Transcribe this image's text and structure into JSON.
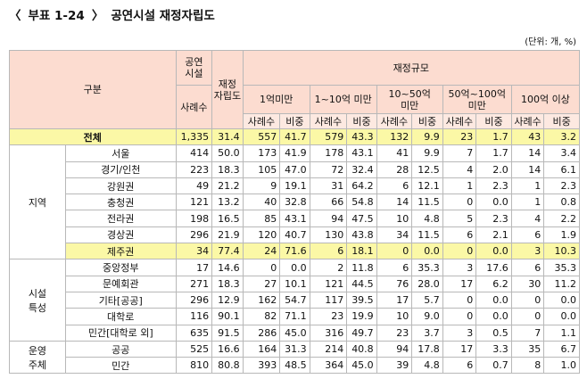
{
  "title": {
    "bracket_left": "〈",
    "prefix": "부표 1-24",
    "bracket_right": "〉",
    "name": "공연시설 재정자립도"
  },
  "unit_note": "(단위: 개, %)",
  "header": {
    "group": "구분",
    "facilities_line1": "공연",
    "facilities_line2": "시설",
    "cases": "사례수",
    "selfreliance_line1": "재정",
    "selfreliance_line2": "자립도",
    "scale": "재정규모",
    "bands": [
      {
        "line1": "1억미만",
        "line2": ""
      },
      {
        "line1": "1~10억 미만",
        "line2": ""
      },
      {
        "line1": "10~50억",
        "line2": "미만"
      },
      {
        "line1": "50억~100억",
        "line2": "미만"
      },
      {
        "line1": "100억 이상",
        "line2": ""
      }
    ],
    "sub_cases": "사례수",
    "sub_share": "비중"
  },
  "categories": {
    "region": "지역",
    "facility_line1": "시설",
    "facility_line2": "특성",
    "operator_line1": "운영",
    "operator_line2": "주체"
  },
  "highlight_color": "#fbf8a6",
  "header_color": "#fcdcd0",
  "rows": {
    "total": {
      "label": "전체",
      "v": [
        "1,335",
        "31.4",
        "557",
        "41.7",
        "579",
        "43.3",
        "132",
        "9.9",
        "23",
        "1.7",
        "43",
        "3.2"
      ]
    },
    "seoul": {
      "label": "서울",
      "v": [
        "414",
        "50.0",
        "173",
        "41.9",
        "178",
        "43.1",
        "41",
        "9.9",
        "7",
        "1.7",
        "14",
        "3.4"
      ]
    },
    "gyeonggi": {
      "label": "경기/인천",
      "v": [
        "223",
        "18.3",
        "105",
        "47.0",
        "72",
        "32.4",
        "28",
        "12.5",
        "4",
        "2.0",
        "14",
        "6.1"
      ]
    },
    "gangwon": {
      "label": "강원권",
      "v": [
        "49",
        "21.2",
        "9",
        "19.1",
        "31",
        "64.2",
        "6",
        "12.1",
        "1",
        "2.3",
        "1",
        "2.3"
      ]
    },
    "chungcheong": {
      "label": "충청권",
      "v": [
        "121",
        "13.2",
        "40",
        "32.8",
        "66",
        "54.8",
        "14",
        "11.5",
        "0",
        "0.0",
        "1",
        "0.8"
      ]
    },
    "jeolla": {
      "label": "전라권",
      "v": [
        "198",
        "16.5",
        "85",
        "43.1",
        "94",
        "47.5",
        "10",
        "4.8",
        "5",
        "2.3",
        "4",
        "2.2"
      ]
    },
    "gyeongsang": {
      "label": "경상권",
      "v": [
        "296",
        "21.9",
        "120",
        "40.7",
        "130",
        "43.8",
        "34",
        "11.5",
        "6",
        "2.1",
        "6",
        "1.9"
      ]
    },
    "jeju": {
      "label": "제주권",
      "v": [
        "34",
        "77.4",
        "24",
        "71.6",
        "6",
        "18.1",
        "0",
        "0.0",
        "0",
        "0.0",
        "3",
        "10.3"
      ]
    },
    "central": {
      "label": "중앙정부",
      "v": [
        "17",
        "14.6",
        "0",
        "0.0",
        "2",
        "11.8",
        "6",
        "35.3",
        "3",
        "17.6",
        "6",
        "35.3"
      ]
    },
    "culture": {
      "label": "문예회관",
      "v": [
        "271",
        "18.3",
        "27",
        "10.1",
        "121",
        "44.5",
        "76",
        "28.0",
        "17",
        "6.2",
        "30",
        "11.2"
      ]
    },
    "other": {
      "label": "기타[공공]",
      "v": [
        "296",
        "12.9",
        "162",
        "54.7",
        "117",
        "39.5",
        "17",
        "5.7",
        "0",
        "0.0",
        "0",
        "0.0"
      ]
    },
    "univ": {
      "label": "대학로",
      "v": [
        "116",
        "90.1",
        "82",
        "71.1",
        "23",
        "19.9",
        "10",
        "9.0",
        "0",
        "0.0",
        "0",
        "0.0"
      ]
    },
    "private_fac": {
      "label": "민간[대학로 외]",
      "v": [
        "635",
        "91.5",
        "286",
        "45.0",
        "316",
        "49.7",
        "23",
        "3.7",
        "3",
        "0.5",
        "7",
        "1.1"
      ]
    },
    "public": {
      "label": "공공",
      "v": [
        "525",
        "16.6",
        "164",
        "31.3",
        "214",
        "40.8",
        "94",
        "17.8",
        "17",
        "3.3",
        "35",
        "6.7"
      ]
    },
    "private": {
      "label": "민간",
      "v": [
        "810",
        "80.8",
        "393",
        "48.5",
        "364",
        "45.0",
        "39",
        "4.8",
        "6",
        "0.7",
        "8",
        "1.0"
      ]
    }
  }
}
